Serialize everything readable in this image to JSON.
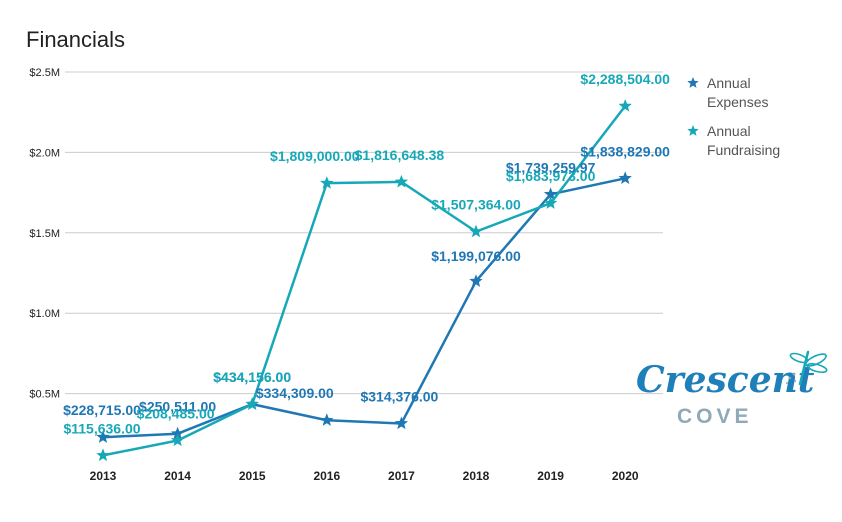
{
  "chart_data": {
    "type": "line",
    "title": "Financials",
    "categories": [
      "2013",
      "2014",
      "2015",
      "2016",
      "2017",
      "2018",
      "2019",
      "2020"
    ],
    "y_ticks": [
      "$0.5M",
      "$1.0M",
      "$1.5M",
      "$2.0M",
      "$2.5M"
    ],
    "ylim": [
      0,
      2500000
    ],
    "grid": true,
    "legend_position": "right",
    "series": [
      {
        "name": "Annual Expenses",
        "legend_lines": [
          "Annual",
          "Expenses"
        ],
        "color": "#1f77b4",
        "values": [
          228715,
          250511,
          434156,
          334309,
          314376,
          1199076,
          1739259.97,
          1838829
        ],
        "labels": [
          "$228,715.00",
          "$250,511.00",
          "$434,156.00",
          "$334,309.00",
          "$314,376.00",
          "$1,199,076.00",
          "$1,739,259.97",
          "$1,838,829.00"
        ]
      },
      {
        "name": "Annual Fundraising",
        "legend_lines": [
          "Annual",
          "Fundraising"
        ],
        "color": "#17a8b8",
        "values": [
          115636,
          208485,
          434156,
          1809000,
          1816648.38,
          1507364,
          1683973,
          2288504
        ],
        "labels": [
          "$115,636.00",
          "$208,485.00",
          "$434,156.00",
          "$1,809,000.00",
          "$1,816,648.38",
          "$1,507,364.00",
          "$1,683,973.00",
          "$2,288,504.00"
        ]
      }
    ]
  },
  "logo": {
    "word": "Crescent",
    "sub": "COVE",
    "primary_color": "#1f7fb8",
    "secondary_color": "#8fa9b8"
  }
}
